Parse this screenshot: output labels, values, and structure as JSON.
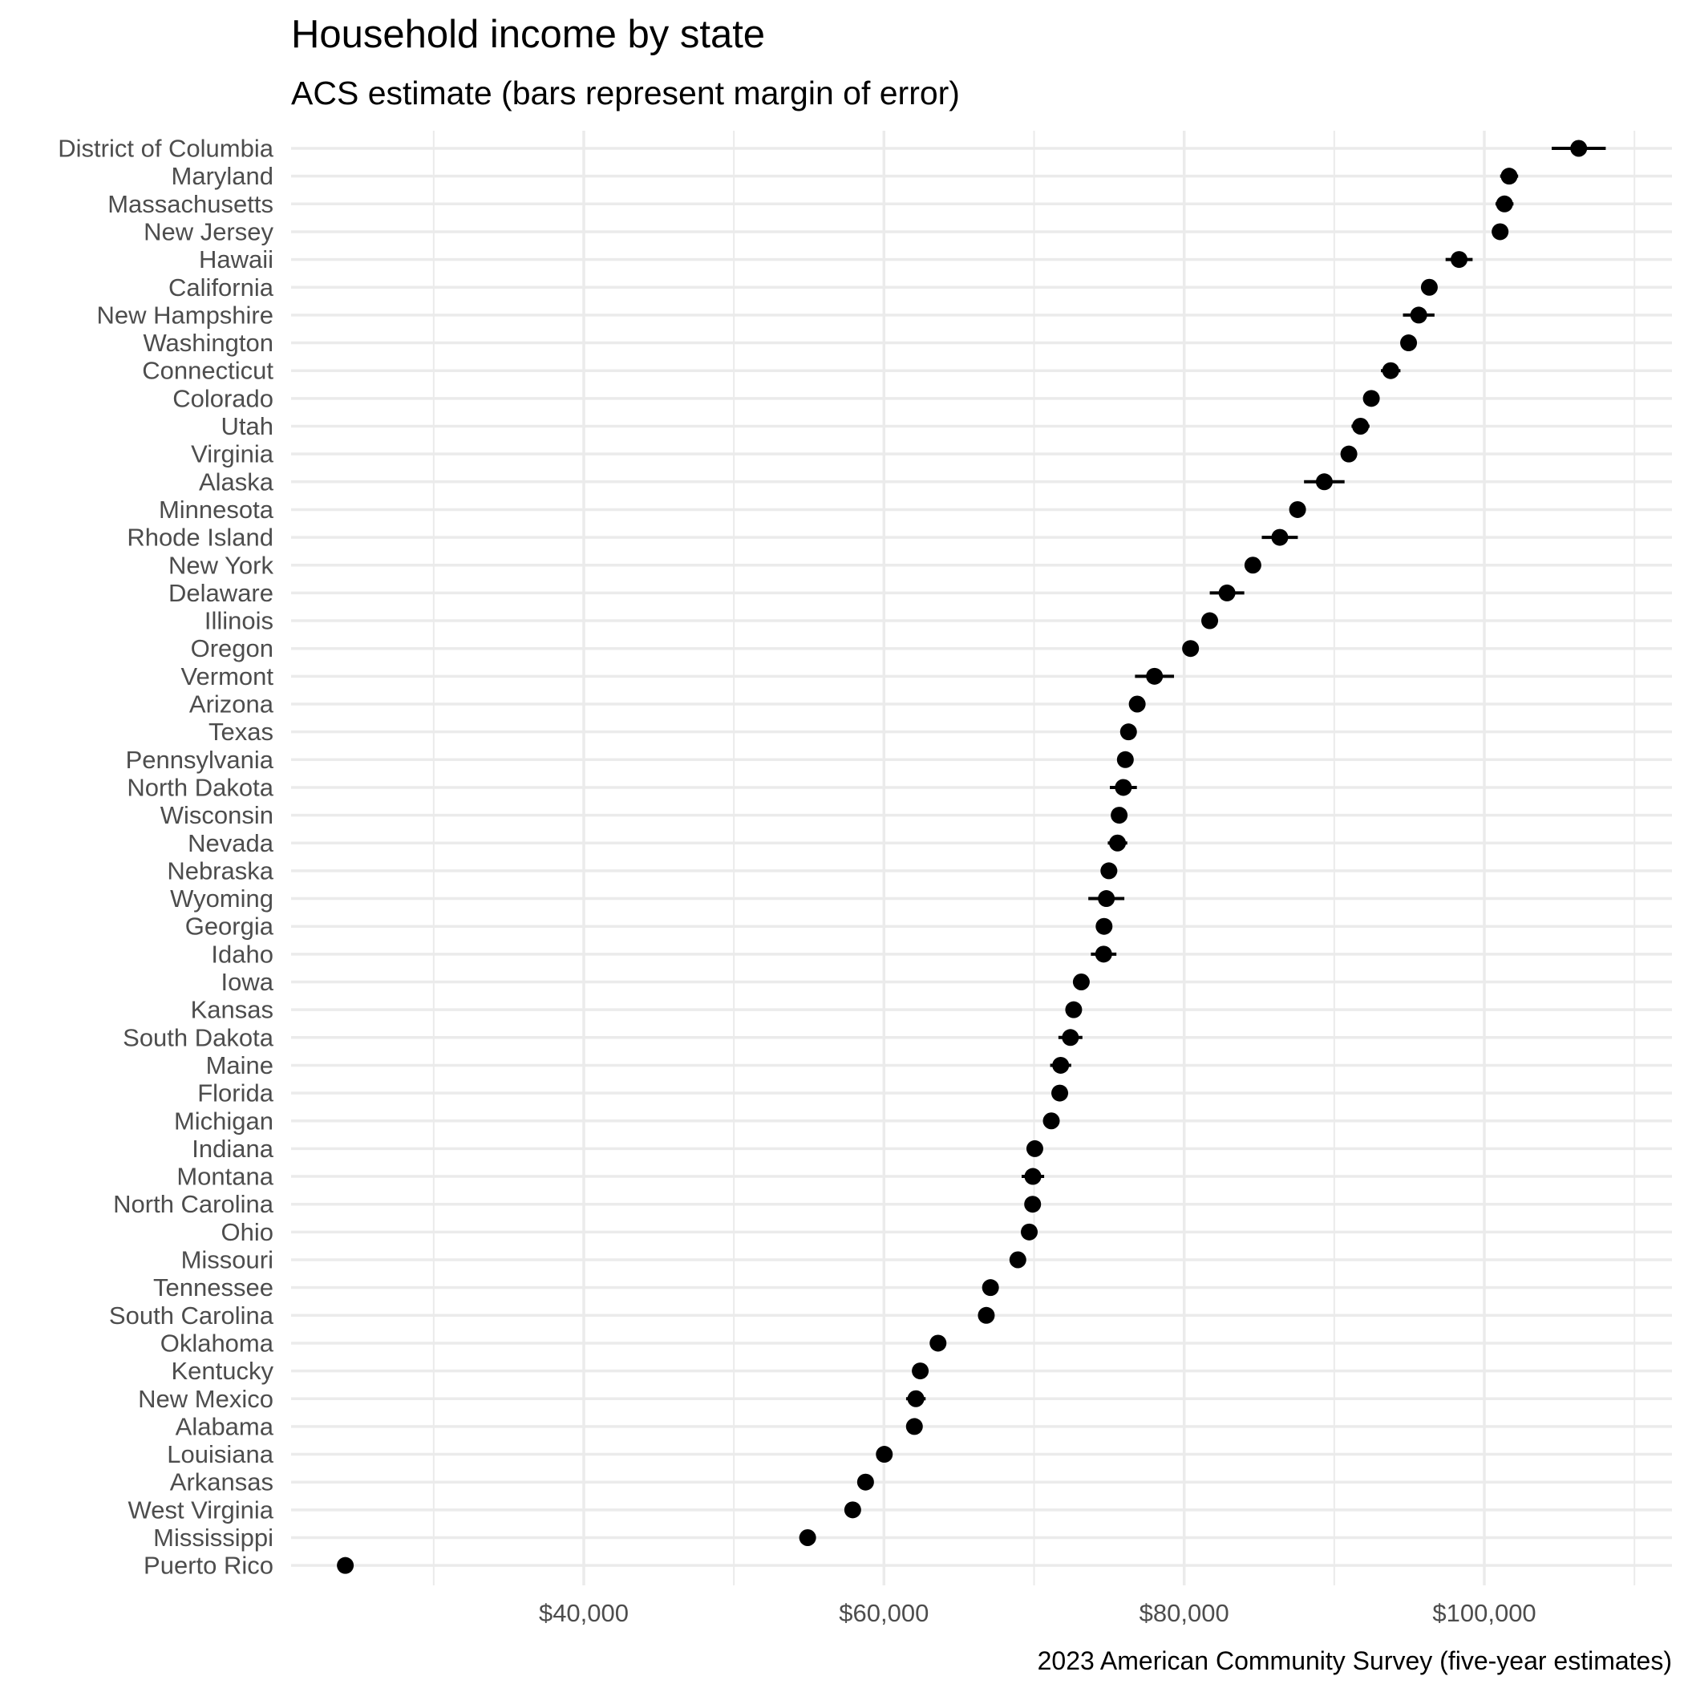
{
  "chart_data": {
    "type": "scatter",
    "title": "Household income by state",
    "subtitle": "ACS estimate (bars represent margin of error)",
    "caption": "2023 American Community Survey (five-year estimates)",
    "xlabel": "",
    "ylabel": "",
    "xlim": [
      20500,
      112500
    ],
    "x_ticks": [
      40000,
      60000,
      80000,
      100000
    ],
    "x_tick_labels": [
      "$40,000",
      "$60,000",
      "$80,000",
      "$100,000"
    ],
    "x_minor_gridlines": [
      30000,
      50000,
      70000,
      90000,
      110000
    ],
    "grid": true,
    "legend": "none",
    "point_color": "#000000",
    "gridline_color": "#ebebeb",
    "series": [
      {
        "points": [
          {
            "state": "District of Columbia",
            "estimate": 106287,
            "moe": 1800
          },
          {
            "state": "Maryland",
            "estimate": 101652,
            "moe": 600
          },
          {
            "state": "Massachusetts",
            "estimate": 101341,
            "moe": 600
          },
          {
            "state": "New Jersey",
            "estimate": 101050,
            "moe": 550
          },
          {
            "state": "Hawaii",
            "estimate": 98317,
            "moe": 900
          },
          {
            "state": "California",
            "estimate": 96334,
            "moe": 350
          },
          {
            "state": "New Hampshire",
            "estimate": 95628,
            "moe": 1050
          },
          {
            "state": "Washington",
            "estimate": 94952,
            "moe": 500
          },
          {
            "state": "Connecticut",
            "estimate": 93760,
            "moe": 650
          },
          {
            "state": "Colorado",
            "estimate": 92470,
            "moe": 500
          },
          {
            "state": "Utah",
            "estimate": 91750,
            "moe": 600
          },
          {
            "state": "Virginia",
            "estimate": 90974,
            "moe": 500
          },
          {
            "state": "Alaska",
            "estimate": 89336,
            "moe": 1350
          },
          {
            "state": "Minnesota",
            "estimate": 87556,
            "moe": 450
          },
          {
            "state": "Rhode Island",
            "estimate": 86372,
            "moe": 1200
          },
          {
            "state": "New York",
            "estimate": 84578,
            "moe": 350
          },
          {
            "state": "Delaware",
            "estimate": 82855,
            "moe": 1150
          },
          {
            "state": "Illinois",
            "estimate": 81702,
            "moe": 350
          },
          {
            "state": "Oregon",
            "estimate": 80426,
            "moe": 450
          },
          {
            "state": "Vermont",
            "estimate": 78024,
            "moe": 1300
          },
          {
            "state": "Arizona",
            "estimate": 76872,
            "moe": 450
          },
          {
            "state": "Texas",
            "estimate": 76292,
            "moe": 300
          },
          {
            "state": "Pennsylvania",
            "estimate": 76081,
            "moe": 350
          },
          {
            "state": "North Dakota",
            "estimate": 75949,
            "moe": 900
          },
          {
            "state": "Wisconsin",
            "estimate": 75670,
            "moe": 400
          },
          {
            "state": "Nevada",
            "estimate": 75561,
            "moe": 650
          },
          {
            "state": "Nebraska",
            "estimate": 74985,
            "moe": 550
          },
          {
            "state": "Wyoming",
            "estimate": 74815,
            "moe": 1200
          },
          {
            "state": "Georgia",
            "estimate": 74664,
            "moe": 450
          },
          {
            "state": "Idaho",
            "estimate": 74636,
            "moe": 850
          },
          {
            "state": "Iowa",
            "estimate": 73147,
            "moe": 450
          },
          {
            "state": "Kansas",
            "estimate": 72639,
            "moe": 500
          },
          {
            "state": "South Dakota",
            "estimate": 72421,
            "moe": 800
          },
          {
            "state": "Maine",
            "estimate": 71773,
            "moe": 700
          },
          {
            "state": "Florida",
            "estimate": 71711,
            "moe": 300
          },
          {
            "state": "Michigan",
            "estimate": 71149,
            "moe": 300
          },
          {
            "state": "Indiana",
            "estimate": 70051,
            "moe": 400
          },
          {
            "state": "Montana",
            "estimate": 69922,
            "moe": 750
          },
          {
            "state": "North Carolina",
            "estimate": 69904,
            "moe": 350
          },
          {
            "state": "Ohio",
            "estimate": 69680,
            "moe": 300
          },
          {
            "state": "Missouri",
            "estimate": 68920,
            "moe": 450
          },
          {
            "state": "Tennessee",
            "estimate": 67097,
            "moe": 350
          },
          {
            "state": "South Carolina",
            "estimate": 66818,
            "moe": 450
          },
          {
            "state": "Oklahoma",
            "estimate": 63603,
            "moe": 450
          },
          {
            "state": "Kentucky",
            "estimate": 62417,
            "moe": 450
          },
          {
            "state": "New Mexico",
            "estimate": 62125,
            "moe": 650
          },
          {
            "state": "Alabama",
            "estimate": 62027,
            "moe": 500
          },
          {
            "state": "Louisiana",
            "estimate": 60023,
            "moe": 450
          },
          {
            "state": "Arkansas",
            "estimate": 58773,
            "moe": 500
          },
          {
            "state": "West Virginia",
            "estimate": 57917,
            "moe": 500
          },
          {
            "state": "Mississippi",
            "estimate": 54915,
            "moe": 550
          },
          {
            "state": "Puerto Rico",
            "estimate": 24112,
            "moe": 400
          }
        ]
      }
    ]
  }
}
